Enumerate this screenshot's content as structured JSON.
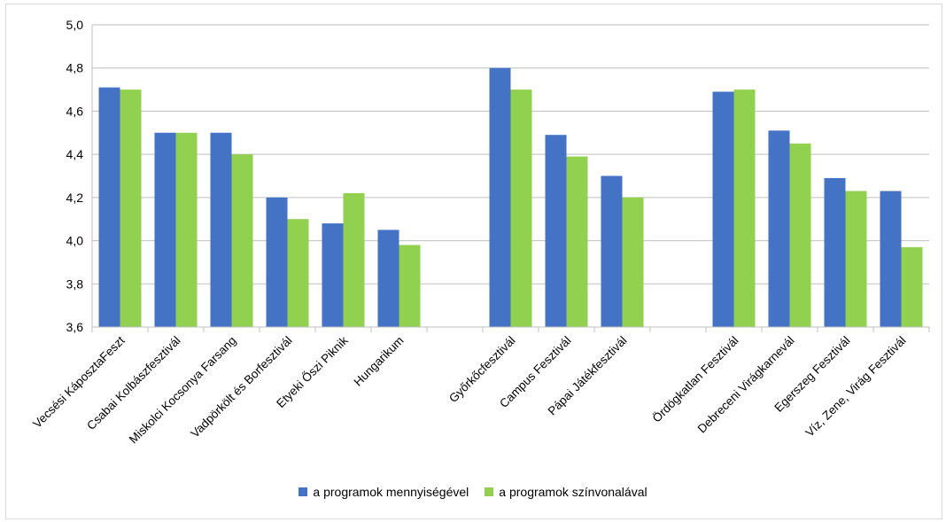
{
  "chart_data": {
    "type": "bar",
    "categories": [
      "Vecsési KáposztaFeszt",
      "Csabai Kolbászfesztivál",
      "Miskolci Kocsonya Farsang",
      "Vadpörkölt és Borfesztivál",
      "Etyeki Őszi Piknik",
      "Hungarikum",
      "",
      "Győrkőcfesztivál",
      "Campus Fesztivál",
      "Pápai Játékfesztivál",
      "",
      "Ördögkatlan Fesztivál",
      "Debreceni Virágkarnevál",
      "Egerszeg Fesztivál",
      "Víz, Zene, Virág Fesztivál"
    ],
    "series": [
      {
        "name": "a programok mennyiségével",
        "color": "#4472C4",
        "values": [
          4.71,
          4.5,
          4.5,
          4.2,
          4.08,
          4.05,
          null,
          4.8,
          4.49,
          4.3,
          null,
          4.69,
          4.51,
          4.29,
          4.23
        ]
      },
      {
        "name": "a programok színvonalával",
        "color": "#92D050",
        "values": [
          4.7,
          4.5,
          4.4,
          4.1,
          4.22,
          3.98,
          null,
          4.7,
          4.39,
          4.2,
          null,
          4.7,
          4.45,
          4.23,
          3.97
        ]
      }
    ],
    "ylim": [
      3.6,
      5.0
    ],
    "yticks": [
      "3,6",
      "3,8",
      "4,0",
      "4,2",
      "4,4",
      "4,6",
      "4,8",
      "5,0"
    ],
    "grid": true,
    "legend": "bottom"
  }
}
